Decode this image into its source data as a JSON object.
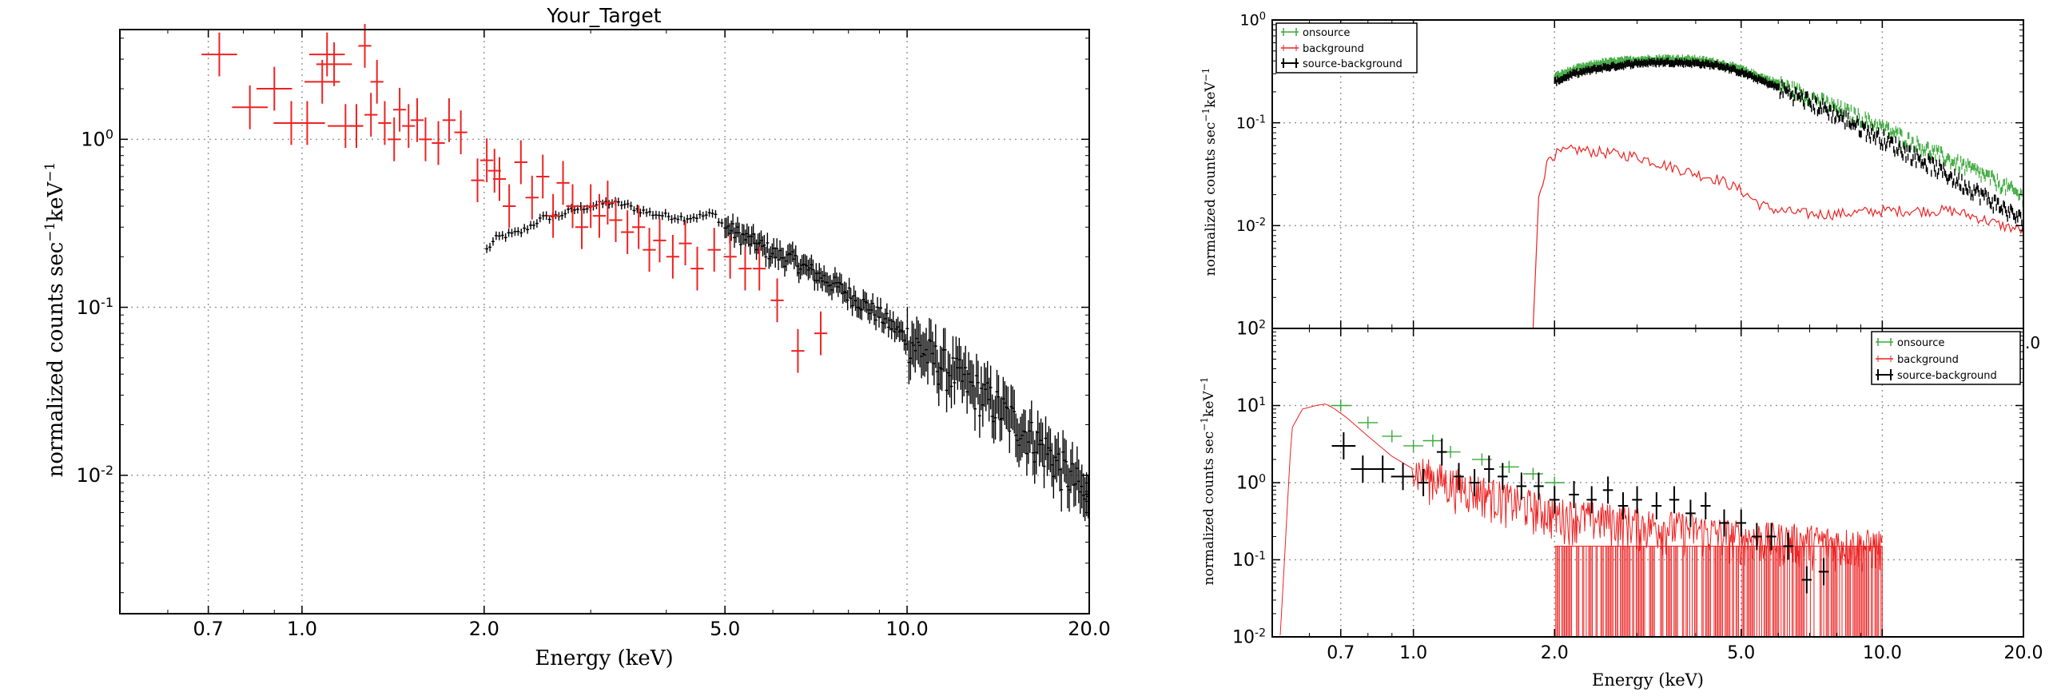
{
  "colors": {
    "source_background": "#000000",
    "background": "#ee2222",
    "onsource": "#3aa83a"
  },
  "left": {
    "title": "Your_Target",
    "xlabel": "Energy (keV)",
    "ylabel_main": "normalized counts sec",
    "ylabel_sup1": "−1",
    "ylabel_unit": "keV",
    "ylabel_sup2": "−1",
    "xticks": [
      "0.7",
      "1.0",
      "2.0",
      "5.0",
      "10.0",
      "20.0"
    ],
    "yticks": [
      {
        "m": "10",
        "e": "0"
      },
      {
        "m": "10",
        "e": "-1"
      },
      {
        "m": "10",
        "e": "-2"
      }
    ]
  },
  "right_top": {
    "ylabel_main": "normalized counts sec",
    "ylabel_sup1": "−1",
    "ylabel_unit": "keV",
    "ylabel_sup2": "−1",
    "yticks": [
      {
        "m": "10",
        "e": "0"
      },
      {
        "m": "10",
        "e": "-1"
      },
      {
        "m": "10",
        "e": "-2"
      }
    ],
    "edge_label": ".0",
    "legend": [
      "onsource",
      "background",
      "source-background"
    ]
  },
  "right_bottom": {
    "xlabel": "Energy (keV)",
    "ylabel_main": "normalized counts sec",
    "ylabel_sup1": "−1",
    "ylabel_unit": "keV",
    "ylabel_sup2": "−1",
    "xticks": [
      "0.7",
      "1.0",
      "2.0",
      "5.0",
      "10.0",
      "20.0"
    ],
    "yticks": [
      {
        "m": "10",
        "e": "2"
      },
      {
        "m": "10",
        "e": "1"
      },
      {
        "m": "10",
        "e": "0"
      },
      {
        "m": "10",
        "e": "-1"
      },
      {
        "m": "10",
        "e": "-2"
      }
    ],
    "legend": [
      "onsource",
      "background",
      "source-background"
    ]
  },
  "chart_data": [
    {
      "type": "scatter",
      "title": "Your_Target",
      "xlabel": "Energy (keV)",
      "ylabel": "normalized counts sec^-1 keV^-1",
      "xscale": "log",
      "yscale": "log",
      "xlim": [
        0.5,
        20.0
      ],
      "ylim": [
        0.0015,
        4.5
      ],
      "grid": true,
      "series": [
        {
          "color": "red",
          "points": [
            [
              0.73,
              3.2
            ],
            [
              0.82,
              1.55
            ],
            [
              0.9,
              2.0
            ],
            [
              0.96,
              1.25
            ],
            [
              1.02,
              1.25
            ],
            [
              1.08,
              2.2
            ],
            [
              1.1,
              3.2
            ],
            [
              1.13,
              2.8
            ],
            [
              1.18,
              1.2
            ],
            [
              1.23,
              1.2
            ],
            [
              1.27,
              3.6
            ],
            [
              1.3,
              1.4
            ],
            [
              1.33,
              2.2
            ],
            [
              1.37,
              1.25
            ],
            [
              1.42,
              1.0
            ],
            [
              1.45,
              1.5
            ],
            [
              1.5,
              1.2
            ],
            [
              1.55,
              1.3
            ],
            [
              1.6,
              1.0
            ],
            [
              1.68,
              0.95
            ],
            [
              1.75,
              1.3
            ],
            [
              1.83,
              1.1
            ],
            [
              1.95,
              0.57
            ],
            [
              2.02,
              0.75
            ],
            [
              2.08,
              0.65
            ],
            [
              2.12,
              0.58
            ],
            [
              2.2,
              0.4
            ],
            [
              2.3,
              0.73
            ],
            [
              2.4,
              0.45
            ],
            [
              2.5,
              0.6
            ],
            [
              2.6,
              0.35
            ],
            [
              2.7,
              0.55
            ],
            [
              2.8,
              0.4
            ],
            [
              2.9,
              0.3
            ],
            [
              3.0,
              0.4
            ],
            [
              3.1,
              0.35
            ],
            [
              3.2,
              0.42
            ],
            [
              3.3,
              0.33
            ],
            [
              3.45,
              0.28
            ],
            [
              3.6,
              0.3
            ],
            [
              3.75,
              0.22
            ],
            [
              3.9,
              0.25
            ],
            [
              4.1,
              0.2
            ],
            [
              4.3,
              0.24
            ],
            [
              4.5,
              0.17
            ],
            [
              4.8,
              0.22
            ],
            [
              5.1,
              0.2
            ],
            [
              5.4,
              0.17
            ],
            [
              5.7,
              0.17
            ],
            [
              6.1,
              0.11
            ],
            [
              6.6,
              0.055
            ],
            [
              7.2,
              0.07
            ]
          ]
        },
        {
          "color": "black",
          "points": [
            [
              2.02,
              0.22
            ],
            [
              2.1,
              0.26
            ],
            [
              2.2,
              0.27
            ],
            [
              2.3,
              0.28
            ],
            [
              2.4,
              0.31
            ],
            [
              2.5,
              0.34
            ],
            [
              2.65,
              0.35
            ],
            [
              2.8,
              0.38
            ],
            [
              3.0,
              0.4
            ],
            [
              3.2,
              0.42
            ],
            [
              3.4,
              0.41
            ],
            [
              3.6,
              0.38
            ],
            [
              3.8,
              0.36
            ],
            [
              4.0,
              0.35
            ],
            [
              4.3,
              0.34
            ],
            [
              4.6,
              0.35
            ],
            [
              4.8,
              0.36
            ],
            [
              5.0,
              0.3
            ],
            [
              5.5,
              0.25
            ],
            [
              6.0,
              0.21
            ],
            [
              6.5,
              0.19
            ],
            [
              7.0,
              0.16
            ],
            [
              7.5,
              0.14
            ],
            [
              8.0,
              0.12
            ],
            [
              9.0,
              0.09
            ],
            [
              10.0,
              0.065
            ],
            [
              11.0,
              0.05
            ],
            [
              12.0,
              0.04
            ],
            [
              13.0,
              0.032
            ],
            [
              14.0,
              0.026
            ],
            [
              15.0,
              0.021
            ],
            [
              16.0,
              0.017
            ],
            [
              17.0,
              0.014
            ],
            [
              18.0,
              0.011
            ],
            [
              19.0,
              0.009
            ],
            [
              20.0,
              0.0065
            ]
          ]
        }
      ]
    },
    {
      "type": "line",
      "xlabel": "",
      "ylabel": "normalized counts sec^-1 keV^-1",
      "xscale": "log",
      "yscale": "log",
      "xlim": [
        0.5,
        20.0
      ],
      "ylim": [
        0.001,
        1.0
      ],
      "grid": true,
      "legend_position": "top-left",
      "series": [
        {
          "name": "onsource",
          "color": "green",
          "x": [
            2.0,
            2.2,
            2.5,
            3.0,
            3.5,
            4.0,
            4.5,
            5.0,
            6.0,
            7.0,
            8.0,
            10.0,
            12.0,
            14.0,
            16.0,
            18.0,
            20.0
          ],
          "y": [
            0.28,
            0.33,
            0.38,
            0.41,
            0.42,
            0.41,
            0.38,
            0.33,
            0.24,
            0.18,
            0.14,
            0.09,
            0.06,
            0.043,
            0.033,
            0.025,
            0.019
          ]
        },
        {
          "name": "background",
          "color": "red",
          "x": [
            1.8,
            1.85,
            1.95,
            2.2,
            2.5,
            3.0,
            3.5,
            4.0,
            4.5,
            5.0,
            5.5,
            6.0,
            7.0,
            8.0,
            10.0,
            12.0,
            14.0,
            16.0,
            18.0,
            20.0
          ],
          "y": [
            0.001,
            0.02,
            0.048,
            0.055,
            0.052,
            0.047,
            0.038,
            0.032,
            0.028,
            0.022,
            0.016,
            0.014,
            0.013,
            0.013,
            0.014,
            0.014,
            0.014,
            0.012,
            0.01,
            0.009
          ]
        },
        {
          "name": "source-background",
          "color": "black",
          "x": [
            2.0,
            2.2,
            2.5,
            3.0,
            3.5,
            4.0,
            4.5,
            5.0,
            6.0,
            7.0,
            8.0,
            10.0,
            12.0,
            14.0,
            16.0,
            18.0,
            20.0
          ],
          "y": [
            0.25,
            0.3,
            0.34,
            0.38,
            0.39,
            0.38,
            0.36,
            0.31,
            0.22,
            0.16,
            0.12,
            0.07,
            0.045,
            0.03,
            0.021,
            0.015,
            0.011
          ]
        }
      ]
    },
    {
      "type": "scatter",
      "xlabel": "Energy (keV)",
      "ylabel": "normalized counts sec^-1 keV^-1",
      "xscale": "log",
      "yscale": "log",
      "xlim": [
        0.5,
        20.0
      ],
      "ylim": [
        0.01,
        100.0
      ],
      "grid": true,
      "legend_position": "top-right",
      "series": [
        {
          "name": "onsource",
          "color": "green",
          "x": [
            0.7,
            0.8,
            0.9,
            1.0,
            1.1,
            1.2,
            1.4,
            1.6,
            1.8,
            2.0
          ],
          "y": [
            10.0,
            6.0,
            4.0,
            3.0,
            3.5,
            2.5,
            2.0,
            1.6,
            1.3,
            1.0
          ]
        },
        {
          "name": "background",
          "color": "red",
          "x": [
            0.52,
            0.55,
            0.58,
            0.62,
            0.65,
            0.68,
            0.72,
            0.8,
            0.9,
            1.0,
            1.2,
            1.4,
            1.6,
            1.8,
            2.0,
            2.5,
            3.0,
            4.0,
            5.0,
            7.0,
            10.0
          ],
          "y": [
            0.01,
            5.0,
            9.0,
            10.0,
            10.5,
            9.0,
            7.0,
            4.0,
            2.2,
            1.5,
            1.0,
            0.8,
            0.6,
            0.5,
            0.4,
            0.35,
            0.3,
            0.25,
            0.2,
            0.18,
            0.15
          ]
        },
        {
          "name": "source-background",
          "color": "black",
          "x": [
            0.71,
            0.78,
            0.86,
            0.95,
            1.05,
            1.15,
            1.25,
            1.35,
            1.45,
            1.55,
            1.7,
            1.85,
            2.0,
            2.2,
            2.4,
            2.6,
            2.8,
            3.0,
            3.3,
            3.6,
            3.9,
            4.2,
            4.6,
            5.0,
            5.4,
            5.8,
            6.3,
            6.9,
            7.5
          ],
          "y": [
            3.0,
            1.5,
            1.5,
            1.2,
            1.0,
            2.5,
            1.2,
            1.0,
            1.5,
            1.2,
            0.9,
            0.9,
            0.6,
            0.7,
            0.6,
            0.8,
            0.5,
            0.6,
            0.5,
            0.6,
            0.4,
            0.5,
            0.3,
            0.3,
            0.2,
            0.2,
            0.15,
            0.055,
            0.07
          ]
        }
      ]
    }
  ]
}
